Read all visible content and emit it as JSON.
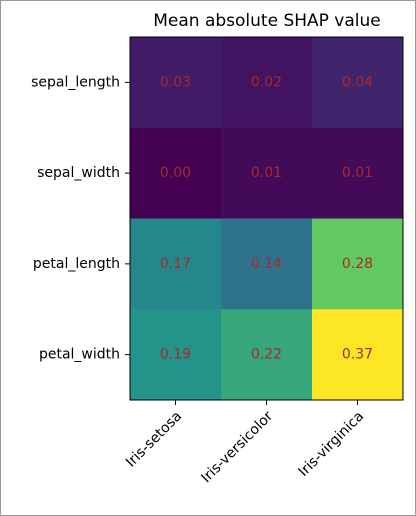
{
  "chart_data": {
    "type": "heatmap",
    "title": "Mean absolute SHAP value",
    "categories": [
      "Iris-setosa",
      "Iris-versicolor",
      "Iris-virginica"
    ],
    "rows": [
      "sepal_length",
      "sepal_width",
      "petal_length",
      "petal_width"
    ],
    "values": [
      [
        0.03,
        0.02,
        0.04
      ],
      [
        0,
        0.01,
        0.01
      ],
      [
        0.17,
        0.14,
        0.28
      ],
      [
        0.19,
        0.22,
        0.37
      ]
    ],
    "value_labels": [
      [
        "0.03",
        "0.02",
        "0.04"
      ],
      [
        "0.00",
        "0.01",
        "0.01"
      ],
      [
        "0.17",
        "0.14",
        "0.28"
      ],
      [
        "0.19",
        "0.22",
        "0.37"
      ]
    ],
    "colormap": "viridis",
    "label_color": "#a52a2a"
  }
}
